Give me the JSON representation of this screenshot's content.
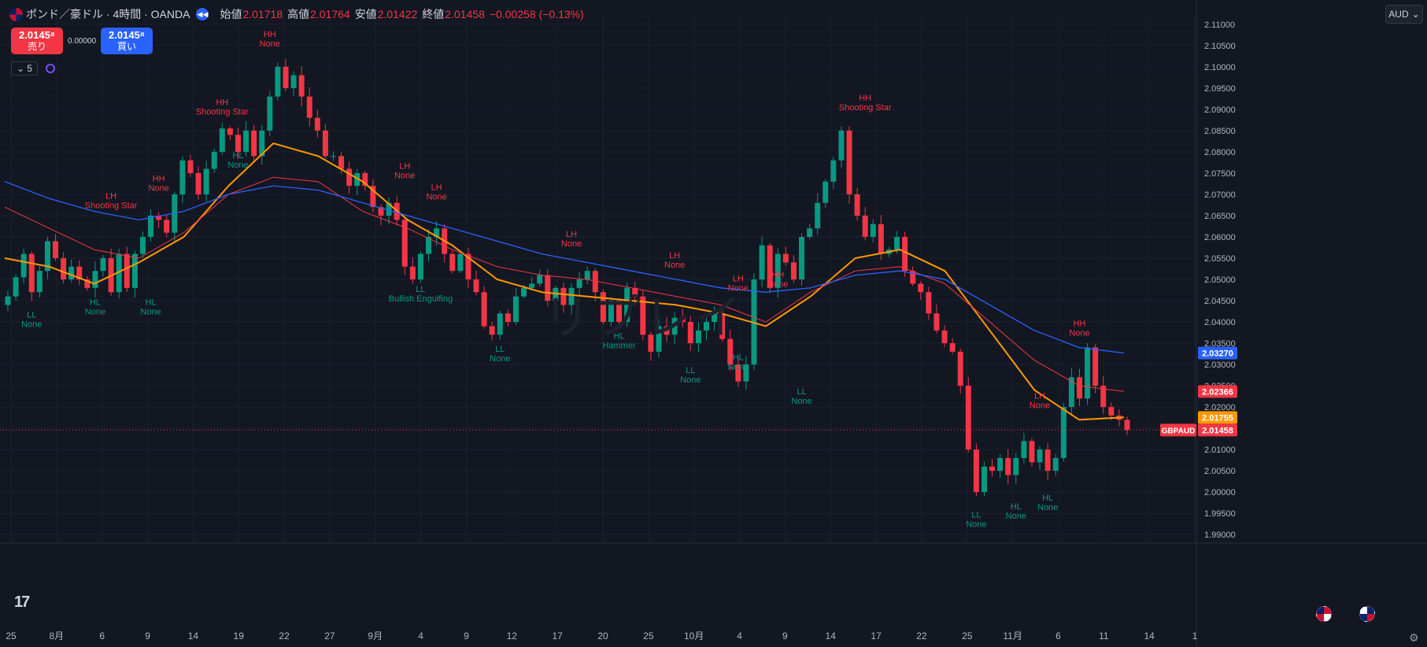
{
  "header": {
    "symbol": "ポンド／豪ドル · 4時間 · OANDA",
    "open_label": "始値",
    "open": "2.01718",
    "high_label": "高値",
    "high": "2.01764",
    "low_label": "安値",
    "low": "2.01422",
    "close_label": "終値",
    "close": "2.01458",
    "change": "−0.00258 (−0.13%)"
  },
  "trade": {
    "sell_price": "2.0145⁸",
    "sell_label": "売り",
    "spread": "0.00000",
    "buy_price": "2.0145⁸",
    "buy_label": "買い"
  },
  "indicator": {
    "count": "5"
  },
  "currency": "AUD",
  "watermark": "リプレイ",
  "colors": {
    "up": "#089981",
    "down": "#f23645",
    "ema_fast": "#ff9800",
    "ema_mid": "#f23645",
    "ema_slow": "#2962ff",
    "bg": "#131722"
  },
  "chart_data": {
    "type": "candlestick",
    "symbol": "GBPAUD",
    "timeframe": "4H",
    "ylim": [
      1.988,
      2.112
    ],
    "y_ticks": [
      "2.11000",
      "2.10500",
      "2.10000",
      "2.09500",
      "2.09000",
      "2.08500",
      "2.08000",
      "2.07500",
      "2.07000",
      "2.06500",
      "2.06000",
      "2.05500",
      "2.05000",
      "2.04500",
      "2.04000",
      "2.03500",
      "2.03000",
      "2.02500",
      "2.02000",
      "2.01500",
      "2.01000",
      "2.00500",
      "2.00000",
      "1.99500",
      "1.99000"
    ],
    "x_ticks": [
      "25",
      "8月",
      "6",
      "9",
      "14",
      "19",
      "22",
      "27",
      "9月",
      "4",
      "9",
      "12",
      "17",
      "20",
      "25",
      "10月",
      "4",
      "9",
      "14",
      "17",
      "22",
      "25",
      "11月",
      "6",
      "11",
      "14",
      "1"
    ],
    "price_path": [
      2.046,
      2.0505,
      2.056,
      2.047,
      2.052,
      2.059,
      2.055,
      2.05,
      2.053,
      2.05,
      2.048,
      2.052,
      2.055,
      2.047,
      2.056,
      2.048,
      2.056,
      2.06,
      2.065,
      2.064,
      2.061,
      2.07,
      2.078,
      2.075,
      2.07,
      2.076,
      2.08,
      2.0855,
      2.084,
      2.08,
      2.085,
      2.079,
      2.085,
      2.093,
      2.1,
      2.095,
      2.098,
      2.093,
      2.088,
      2.085,
      2.079,
      2.079,
      2.076,
      2.072,
      2.075,
      2.072,
      2.067,
      2.065,
      2.068,
      2.064,
      2.053,
      2.05,
      2.056,
      2.06,
      2.062,
      2.056,
      2.052,
      2.056,
      2.05,
      2.047,
      2.039,
      2.037,
      2.042,
      2.04,
      2.046,
      2.048,
      2.049,
      2.051,
      2.045,
      2.048,
      2.044,
      2.048,
      2.05,
      2.052,
      2.047,
      2.04,
      2.045,
      2.04,
      2.048,
      2.046,
      2.037,
      2.033,
      2.039,
      2.037,
      2.041,
      2.04,
      2.035,
      2.038,
      2.04,
      2.042,
      2.036,
      2.03,
      2.026,
      2.03,
      2.05,
      2.058,
      2.048,
      2.056,
      2.054,
      2.05,
      2.06,
      2.062,
      2.068,
      2.073,
      2.078,
      2.085,
      2.07,
      2.065,
      2.06,
      2.063,
      2.056,
      2.057,
      2.06,
      2.052,
      2.049,
      2.047,
      2.042,
      2.038,
      2.035,
      2.033,
      2.025,
      2.01,
      2.0,
      2.006,
      2.005,
      2.008,
      2.004,
      2.008,
      2.012,
      2.007,
      2.01,
      2.005,
      2.008,
      2.02,
      2.027,
      2.022,
      2.034,
      2.025,
      2.02,
      2.018,
      2.017,
      2.01458
    ],
    "series": [
      {
        "name": "EMA fast",
        "values": [
          2.055,
          2.053,
          2.049,
          2.054,
          2.06,
          2.072,
          2.082,
          2.079,
          2.073,
          2.064,
          2.058,
          2.05,
          2.047,
          2.046,
          2.045,
          2.044,
          2.042,
          2.039,
          2.046,
          2.055,
          2.057,
          2.052,
          2.038,
          2.024,
          2.017,
          2.01755
        ]
      },
      {
        "name": "EMA mid",
        "values": [
          2.067,
          2.062,
          2.057,
          2.055,
          2.061,
          2.07,
          2.074,
          2.073,
          2.066,
          2.062,
          2.057,
          2.053,
          2.051,
          2.05,
          2.048,
          2.046,
          2.044,
          2.04,
          2.047,
          2.052,
          2.053,
          2.049,
          2.04,
          2.031,
          2.025,
          2.02366
        ]
      },
      {
        "name": "EMA slow",
        "values": [
          2.073,
          2.069,
          2.066,
          2.064,
          2.066,
          2.07,
          2.072,
          2.071,
          2.068,
          2.065,
          2.062,
          2.059,
          2.056,
          2.054,
          2.052,
          2.05,
          2.048,
          2.047,
          2.048,
          2.051,
          2.052,
          2.05,
          2.044,
          2.038,
          2.034,
          2.0327
        ]
      }
    ],
    "price_labels": [
      {
        "text": "2.03270",
        "value": 2.0327,
        "color": "#2962ff"
      },
      {
        "text": "2.02366",
        "value": 2.02366,
        "color": "#f23645"
      },
      {
        "text": "2.01755",
        "value": 2.01755,
        "color": "#ff9800"
      },
      {
        "text": "2.01458",
        "value": 2.01458,
        "color": "#f23645",
        "tag": "GBPAUD"
      }
    ],
    "annotations": [
      {
        "t": "LH",
        "s": "Shooting Star",
        "i": 13,
        "v": 2.069,
        "c": "red"
      },
      {
        "t": "HH",
        "s": "None",
        "i": 33,
        "v": 2.107,
        "c": "red"
      },
      {
        "t": "HH",
        "s": "Shooting Star",
        "i": 27,
        "v": 2.091,
        "c": "red"
      },
      {
        "t": "HH",
        "s": "None",
        "i": 19,
        "v": 2.073,
        "c": "red"
      },
      {
        "t": "HL",
        "s": "None",
        "i": 29,
        "v": 2.0785,
        "c": "green"
      },
      {
        "t": "LH",
        "s": "None",
        "i": 50,
        "v": 2.076,
        "c": "red"
      },
      {
        "t": "LH",
        "s": "None",
        "i": 54,
        "v": 2.071,
        "c": "red"
      },
      {
        "t": "LL",
        "s": "None",
        "i": 3,
        "v": 2.041,
        "c": "green"
      },
      {
        "t": "HL",
        "s": "None",
        "i": 11,
        "v": 2.044,
        "c": "green"
      },
      {
        "t": "HL",
        "s": "None",
        "i": 18,
        "v": 2.044,
        "c": "green"
      },
      {
        "t": "LL",
        "s": "Bullish Engulfing",
        "i": 52,
        "v": 2.047,
        "c": "green"
      },
      {
        "t": "LH",
        "s": "None",
        "i": 71,
        "v": 2.06,
        "c": "red"
      },
      {
        "t": "LL",
        "s": "None",
        "i": 62,
        "v": 2.033,
        "c": "green"
      },
      {
        "t": "HL",
        "s": "Hammer",
        "i": 77,
        "v": 2.036,
        "c": "green"
      },
      {
        "t": "LH",
        "s": "None",
        "i": 84,
        "v": 2.055,
        "c": "red"
      },
      {
        "t": "LH",
        "s": "None",
        "i": 92,
        "v": 2.0495,
        "c": "red"
      },
      {
        "t": "HH",
        "s": "None",
        "i": 97,
        "v": 2.0505,
        "c": "red"
      },
      {
        "t": "LL",
        "s": "None",
        "i": 86,
        "v": 2.028,
        "c": "green"
      },
      {
        "t": "HL",
        "s": "None",
        "i": 92,
        "v": 2.031,
        "c": "green"
      },
      {
        "t": "LL",
        "s": "None",
        "i": 100,
        "v": 2.023,
        "c": "green"
      },
      {
        "t": "HH",
        "s": "Shooting Star",
        "i": 108,
        "v": 2.092,
        "c": "red"
      },
      {
        "t": "HL",
        "s": "None",
        "i": 127,
        "v": 1.996,
        "c": "green"
      },
      {
        "t": "LL",
        "s": "None",
        "i": 122,
        "v": 1.994,
        "c": "green"
      },
      {
        "t": "LH",
        "s": "None",
        "i": 130,
        "v": 2.022,
        "c": "red"
      },
      {
        "t": "HL",
        "s": "None",
        "i": 131,
        "v": 1.998,
        "c": "green"
      },
      {
        "t": "HH",
        "s": "None",
        "i": 135,
        "v": 2.039,
        "c": "red"
      }
    ]
  }
}
